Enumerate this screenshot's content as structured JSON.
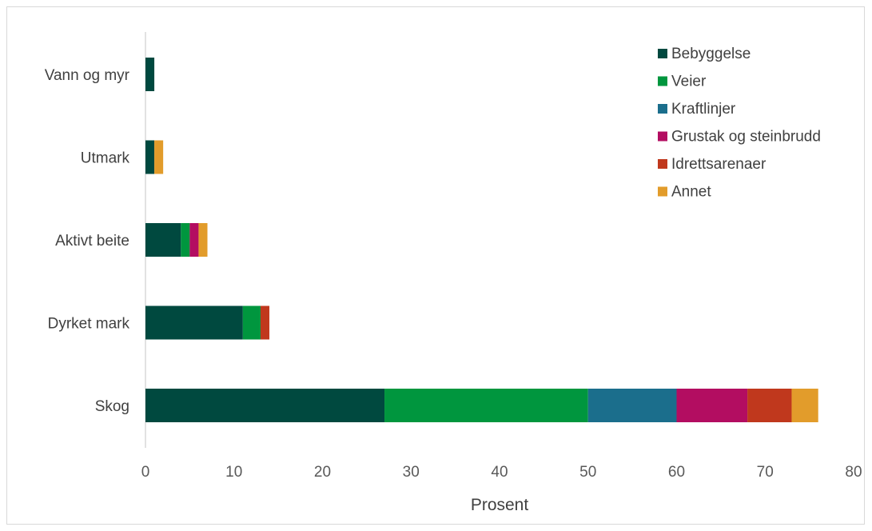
{
  "chart_data": {
    "type": "bar",
    "orientation": "horizontal",
    "stacked": true,
    "categories": [
      "Skog",
      "Dyrket mark",
      "Aktivt beite",
      "Utmark",
      "Vann og myr"
    ],
    "series": [
      {
        "name": "Bebyggelse",
        "color": "#00493f",
        "values": [
          27,
          11,
          4,
          1,
          1
        ]
      },
      {
        "name": "Veier",
        "color": "#00963e",
        "values": [
          23,
          2,
          1,
          0,
          0
        ]
      },
      {
        "name": "Kraftlinjer",
        "color": "#1b6e8c",
        "values": [
          10,
          0,
          0,
          0,
          0
        ]
      },
      {
        "name": "Grustak og steinbrudd",
        "color": "#b30d61",
        "values": [
          8,
          0,
          1,
          0,
          0
        ]
      },
      {
        "name": "Idrettsarenaer",
        "color": "#c0381d",
        "values": [
          5,
          1,
          0,
          0,
          0
        ]
      },
      {
        "name": "Annet",
        "color": "#e29c2b",
        "values": [
          3,
          0,
          1,
          1,
          0
        ]
      }
    ],
    "xlabel": "Prosent",
    "ylabel": "",
    "xlim": [
      0,
      80
    ],
    "xticks": [
      0,
      10,
      20,
      30,
      40,
      50,
      60,
      70,
      80
    ],
    "grid": false,
    "legend": "top-right"
  }
}
